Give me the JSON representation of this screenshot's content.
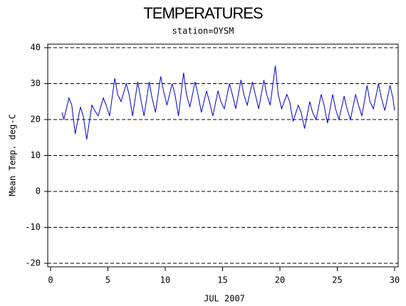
{
  "chart_data": {
    "type": "line",
    "title": "TEMPERATURES",
    "subtitle": "station=OYSM",
    "x_label": "JUL 2007",
    "y_label": "Mean Temp. deg-C",
    "xlim": [
      0,
      30
    ],
    "xticks": [
      0,
      5,
      10,
      15,
      20,
      25,
      30
    ],
    "ylim": [
      -20,
      40
    ],
    "yticks": [
      -20,
      -10,
      0,
      10,
      20,
      30,
      40
    ],
    "grid": true,
    "series": [
      {
        "color": "#0000cc",
        "x": [
          1.0,
          1.15,
          1.6,
          1.85,
          2.15,
          2.6,
          2.85,
          3.15,
          3.6,
          3.85,
          4.15,
          4.6,
          4.85,
          5.15,
          5.6,
          5.85,
          6.15,
          6.6,
          6.85,
          7.15,
          7.6,
          7.85,
          8.15,
          8.6,
          8.85,
          9.15,
          9.6,
          9.85,
          10.15,
          10.6,
          10.85,
          11.15,
          11.6,
          11.85,
          12.15,
          12.6,
          12.85,
          13.15,
          13.6,
          13.85,
          14.15,
          14.6,
          14.85,
          15.15,
          15.6,
          15.85,
          16.15,
          16.6,
          16.85,
          17.15,
          17.6,
          17.85,
          18.15,
          18.6,
          18.85,
          19.15,
          19.6,
          19.85,
          20.15,
          20.6,
          20.85,
          21.15,
          21.6,
          21.85,
          22.15,
          22.6,
          22.85,
          23.15,
          23.6,
          23.85,
          24.15,
          24.6,
          24.85,
          25.15,
          25.6,
          25.85,
          26.15,
          26.6,
          26.85,
          27.15,
          27.6,
          27.85,
          28.15,
          28.6,
          28.85,
          29.15,
          29.6,
          29.85,
          30.0
        ],
        "values": [
          22,
          20,
          26,
          24,
          16,
          23.5,
          21,
          14.5,
          24,
          22.5,
          21,
          26,
          24,
          21,
          31.5,
          27,
          25,
          30,
          27,
          21,
          30.5,
          26,
          21,
          30.5,
          26,
          22,
          32,
          28,
          24,
          30,
          27,
          21,
          33,
          27,
          23.5,
          30.5,
          27,
          22,
          28,
          25,
          21,
          28,
          25,
          23,
          30,
          27,
          23,
          31,
          27,
          24,
          30.5,
          27,
          23,
          31,
          27,
          24,
          35,
          27,
          23,
          27,
          25,
          19.5,
          24,
          22,
          17.5,
          25,
          22,
          20,
          27,
          24,
          19,
          27,
          23,
          20,
          26.5,
          23,
          20,
          27,
          24,
          21,
          29.5,
          25,
          23,
          30,
          26,
          22.5,
          29.5,
          26,
          22.5
        ]
      }
    ]
  }
}
